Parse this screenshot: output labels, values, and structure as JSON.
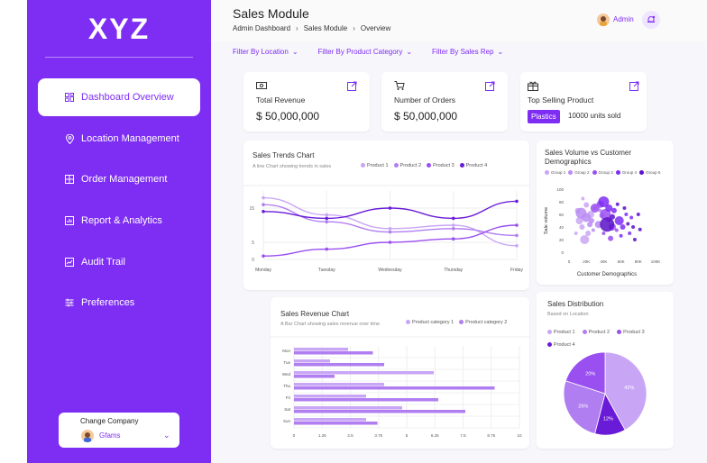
{
  "sidebar": {
    "logo": "XYZ",
    "items": [
      {
        "label": "Dashboard Overview",
        "icon": "dashboard-icon",
        "active": true
      },
      {
        "label": "Location Management",
        "icon": "location-pin-icon",
        "active": false
      },
      {
        "label": "Order Management",
        "icon": "order-grid-icon",
        "active": false
      },
      {
        "label": "Report & Analytics",
        "icon": "report-chart-icon",
        "active": false
      },
      {
        "label": "Audit Trail",
        "icon": "audit-trail-icon",
        "active": false
      },
      {
        "label": "Preferences",
        "icon": "preferences-sliders-icon",
        "active": false
      }
    ],
    "company": {
      "label": "Change Company",
      "name": "Gfams"
    }
  },
  "header": {
    "title": "Sales Module",
    "breadcrumbs": [
      "Admin Dashboard",
      "Sales Module",
      "Overview"
    ],
    "user": "Admin"
  },
  "filters": [
    "Filter By Location",
    "Filter By Product Category",
    "Filter By Sales Rep"
  ],
  "kpis": {
    "revenue": {
      "label": "Total Revenue",
      "value": "$ 50,000,000"
    },
    "orders": {
      "label": "Number of Orders",
      "value": "$ 50,000,000"
    },
    "top": {
      "label": "Top Selling Product",
      "chip": "Plastics",
      "extra": "10000 units sold"
    }
  },
  "colors": {
    "accent": "#7e2df3",
    "product1": "#c9a6f5",
    "product2": "#b07ef0",
    "product3": "#9a4ff0",
    "product4": "#6a1bd8"
  },
  "chart_data": [
    {
      "type": "line",
      "title": "Sales Trends Chart",
      "subtitle": "A line Chart showing trends in sales",
      "categories": [
        "Monday",
        "Tuesday",
        "Wednesday",
        "Thursday",
        "Friday"
      ],
      "yticks": [
        0,
        5,
        15
      ],
      "ylim": [
        0,
        20
      ],
      "series": [
        {
          "name": "Product 1",
          "values": [
            18,
            13,
            9,
            10,
            4
          ]
        },
        {
          "name": "Product 2",
          "values": [
            16,
            11,
            8,
            9,
            7
          ]
        },
        {
          "name": "Product 3",
          "values": [
            1,
            3,
            5,
            6,
            10
          ]
        },
        {
          "name": "Product 4",
          "values": [
            14,
            12,
            15,
            12,
            17
          ]
        }
      ]
    },
    {
      "type": "scatter",
      "title": "Sales Volume vs Customer Demographics",
      "xlabel": "Customer Demographics",
      "ylabel": "Sale volume",
      "xticks": [
        "0",
        "20K",
        "40K",
        "60K",
        "80K",
        "100K"
      ],
      "yticks": [
        "0",
        "20",
        "40",
        "60",
        "80",
        "100"
      ],
      "series": [
        {
          "name": "Group 1",
          "points": [
            [
              10,
              66,
              3
            ],
            [
              12,
              50,
              4
            ],
            [
              15,
              40,
              3
            ],
            [
              18,
              20,
              5
            ],
            [
              22,
              30,
              3
            ],
            [
              8,
              30,
              2
            ],
            [
              25,
              60,
              4
            ],
            [
              30,
              70,
              2
            ],
            [
              20,
              75,
              3
            ],
            [
              16,
              85,
              2
            ]
          ]
        },
        {
          "name": "Group 2",
          "points": [
            [
              14,
              62,
              6
            ],
            [
              20,
              55,
              5
            ],
            [
              26,
              50,
              3
            ],
            [
              34,
              44,
              4
            ],
            [
              38,
              58,
              3
            ],
            [
              28,
              35,
              2
            ],
            [
              24,
              44,
              3
            ],
            [
              36,
              66,
              2
            ]
          ]
        },
        {
          "name": "Group 3",
          "points": [
            [
              30,
              70,
              5
            ],
            [
              36,
              76,
              4
            ],
            [
              42,
              60,
              6
            ],
            [
              46,
              52,
              3
            ],
            [
              50,
              40,
              4
            ],
            [
              40,
              30,
              2
            ],
            [
              48,
              22,
              3
            ],
            [
              55,
              35,
              2
            ]
          ]
        },
        {
          "name": "Group 4",
          "points": [
            [
              40,
              80,
              6
            ],
            [
              46,
              70,
              4
            ],
            [
              52,
              66,
              3
            ],
            [
              58,
              50,
              5
            ],
            [
              62,
              40,
              3
            ],
            [
              66,
              60,
              2
            ],
            [
              60,
              26,
              2
            ],
            [
              70,
              30,
              2
            ],
            [
              72,
              55,
              2
            ]
          ]
        },
        {
          "name": "Group 5",
          "points": [
            [
              44,
              44,
              8
            ],
            [
              50,
              56,
              3
            ],
            [
              56,
              76,
              2
            ],
            [
              64,
              70,
              2
            ],
            [
              68,
              45,
              2
            ],
            [
              74,
              40,
              2
            ],
            [
              76,
              20,
              2
            ],
            [
              80,
              60,
              2
            ],
            [
              82,
              36,
              2
            ]
          ]
        }
      ]
    },
    {
      "type": "bar",
      "title": "Sales Revenue Chart",
      "subtitle": "A Bar Chart showing sales revenue over time",
      "categories": [
        "Mon",
        "Tue",
        "Wed",
        "Thu",
        "Fri",
        "Sat",
        "Sun"
      ],
      "xticks": [
        "0",
        "1.25",
        "2.5",
        "3.75",
        "5",
        "6.25",
        "7.5",
        "8.75",
        "10"
      ],
      "xlim": [
        0,
        10
      ],
      "series": [
        {
          "name": "Product category 1",
          "values": [
            2.4,
            1.6,
            6.2,
            4.0,
            3.2,
            4.8,
            3.2
          ]
        },
        {
          "name": "Product category 2",
          "values": [
            3.5,
            4.0,
            1.8,
            8.9,
            6.4,
            7.6,
            3.7
          ]
        }
      ]
    },
    {
      "type": "pie",
      "title": "Sales Distribution",
      "subtitle": "Based on Location",
      "series": [
        {
          "name": "Product 1",
          "value": 42
        },
        {
          "name": "Product 2",
          "value": 26
        },
        {
          "name": "Product 3",
          "value": 20
        },
        {
          "name": "Product 4",
          "value": 12
        }
      ],
      "slice_labels": [
        "42%",
        "12%",
        "26%",
        "20%"
      ]
    }
  ]
}
